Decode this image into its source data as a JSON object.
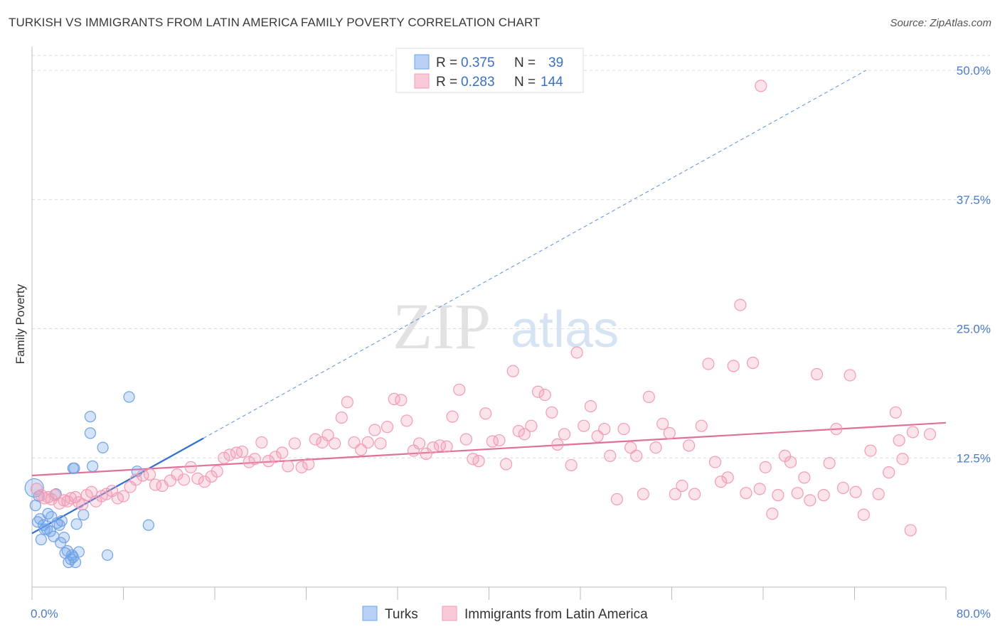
{
  "title": "TURKISH VS IMMIGRANTS FROM LATIN AMERICA FAMILY POVERTY CORRELATION CHART",
  "source": "Source: ZipAtlas.com",
  "watermark": {
    "zip": "ZIP",
    "atlas": "atlas"
  },
  "stats_legend": [
    {
      "r_label": "R = ",
      "r_value": "0.375",
      "n_label": "N = ",
      "n_value": "39",
      "color": "#6fa2e8"
    },
    {
      "r_label": "R = ",
      "r_value": "0.283",
      "n_label": "N = ",
      "n_value": "144",
      "color": "#f29bb5"
    }
  ],
  "chart_data": {
    "type": "scatter",
    "title": "TURKISH VS IMMIGRANTS FROM LATIN AMERICA FAMILY POVERTY CORRELATION CHART",
    "xlabel": "",
    "ylabel": "Family Poverty",
    "xlim": [
      0,
      80
    ],
    "ylim": [
      0,
      52
    ],
    "x_tick_labels": [
      "0.0%",
      "80.0%"
    ],
    "y_ticks": [
      12.5,
      25.0,
      37.5,
      50.0
    ],
    "y_tick_labels": [
      "12.5%",
      "25.0%",
      "37.5%",
      "50.0%"
    ],
    "grid": true,
    "legend_position": "bottom",
    "series": [
      {
        "name": "Turks",
        "color": "#6fa2e8",
        "r": 0.375,
        "n": 39,
        "trend": {
          "x": [
            0,
            15
          ],
          "y": [
            5.2,
            14.4
          ],
          "extended_to": [
            73,
            50.0
          ]
        },
        "points": [
          [
            0.2,
            9.6
          ],
          [
            0.3,
            7.9
          ],
          [
            0.5,
            6.3
          ],
          [
            0.6,
            8.8
          ],
          [
            0.7,
            6.6
          ],
          [
            0.8,
            4.6
          ],
          [
            1.0,
            6.0
          ],
          [
            1.1,
            5.6
          ],
          [
            1.3,
            5.6
          ],
          [
            1.4,
            7.1
          ],
          [
            1.6,
            5.4
          ],
          [
            1.7,
            6.8
          ],
          [
            1.9,
            4.9
          ],
          [
            2.1,
            9.0
          ],
          [
            2.2,
            6.2
          ],
          [
            2.4,
            6.0
          ],
          [
            2.5,
            4.3
          ],
          [
            2.6,
            6.4
          ],
          [
            2.8,
            4.8
          ],
          [
            2.9,
            3.3
          ],
          [
            3.1,
            3.5
          ],
          [
            3.2,
            2.4
          ],
          [
            3.4,
            2.7
          ],
          [
            3.5,
            3.1
          ],
          [
            3.6,
            2.9
          ],
          [
            3.8,
            2.4
          ],
          [
            3.9,
            6.1
          ],
          [
            4.1,
            3.4
          ],
          [
            4.5,
            7.0
          ],
          [
            3.6,
            11.5
          ],
          [
            3.7,
            11.5
          ],
          [
            5.3,
            11.7
          ],
          [
            5.1,
            14.9
          ],
          [
            5.1,
            16.5
          ],
          [
            6.2,
            13.5
          ],
          [
            6.6,
            3.1
          ],
          [
            8.5,
            18.4
          ],
          [
            9.2,
            11.2
          ],
          [
            10.2,
            6.0
          ]
        ]
      },
      {
        "name": "Immigrants from Latin America",
        "color": "#f29bb5",
        "r": 0.283,
        "n": 144,
        "trend": {
          "x": [
            0,
            80
          ],
          "y": [
            10.8,
            15.9
          ]
        },
        "points": [
          [
            0.4,
            9.5
          ],
          [
            0.8,
            8.9
          ],
          [
            1.1,
            8.6
          ],
          [
            1.4,
            8.7
          ],
          [
            1.7,
            8.5
          ],
          [
            2.0,
            8.9
          ],
          [
            2.4,
            8.1
          ],
          [
            2.8,
            8.4
          ],
          [
            3.1,
            8.3
          ],
          [
            3.4,
            8.6
          ],
          [
            3.8,
            8.7
          ],
          [
            4.1,
            8.2
          ],
          [
            4.4,
            8.0
          ],
          [
            4.8,
            8.9
          ],
          [
            5.2,
            9.2
          ],
          [
            5.6,
            8.3
          ],
          [
            6.1,
            8.8
          ],
          [
            6.5,
            9.0
          ],
          [
            7.0,
            9.3
          ],
          [
            7.5,
            8.6
          ],
          [
            8.0,
            8.8
          ],
          [
            8.6,
            9.7
          ],
          [
            9.1,
            10.4
          ],
          [
            9.7,
            10.8
          ],
          [
            10.3,
            10.9
          ],
          [
            10.8,
            9.9
          ],
          [
            11.4,
            9.8
          ],
          [
            12.1,
            10.3
          ],
          [
            12.7,
            10.9
          ],
          [
            13.3,
            10.4
          ],
          [
            13.9,
            11.6
          ],
          [
            14.5,
            10.5
          ],
          [
            15.1,
            10.2
          ],
          [
            15.7,
            10.7
          ],
          [
            16.2,
            11.2
          ],
          [
            16.8,
            12.5
          ],
          [
            17.3,
            12.8
          ],
          [
            17.9,
            13.0
          ],
          [
            18.4,
            13.1
          ],
          [
            19.0,
            12.1
          ],
          [
            19.5,
            12.4
          ],
          [
            20.1,
            14.0
          ],
          [
            20.7,
            12.2
          ],
          [
            21.3,
            12.6
          ],
          [
            21.9,
            13.0
          ],
          [
            22.4,
            11.7
          ],
          [
            23.0,
            13.9
          ],
          [
            23.6,
            11.6
          ],
          [
            24.2,
            11.9
          ],
          [
            24.8,
            14.3
          ],
          [
            25.4,
            14.0
          ],
          [
            25.9,
            14.7
          ],
          [
            26.5,
            13.9
          ],
          [
            27.1,
            16.4
          ],
          [
            27.6,
            17.9
          ],
          [
            28.2,
            14.0
          ],
          [
            28.8,
            13.3
          ],
          [
            29.4,
            14.0
          ],
          [
            30.0,
            15.2
          ],
          [
            30.5,
            13.9
          ],
          [
            31.1,
            15.5
          ],
          [
            31.7,
            18.2
          ],
          [
            32.3,
            18.1
          ],
          [
            32.8,
            16.1
          ],
          [
            33.4,
            13.2
          ],
          [
            33.9,
            13.9
          ],
          [
            34.5,
            12.9
          ],
          [
            35.1,
            13.5
          ],
          [
            35.7,
            13.7
          ],
          [
            36.3,
            13.6
          ],
          [
            36.8,
            16.5
          ],
          [
            37.4,
            19.1
          ],
          [
            38.0,
            14.3
          ],
          [
            38.6,
            12.4
          ],
          [
            39.1,
            12.2
          ],
          [
            39.7,
            16.8
          ],
          [
            40.3,
            14.1
          ],
          [
            40.9,
            14.2
          ],
          [
            41.5,
            11.9
          ],
          [
            42.1,
            20.9
          ],
          [
            42.6,
            15.1
          ],
          [
            43.1,
            14.8
          ],
          [
            43.7,
            15.6
          ],
          [
            44.3,
            18.9
          ],
          [
            44.9,
            18.6
          ],
          [
            45.5,
            16.9
          ],
          [
            46.0,
            13.8
          ],
          [
            46.6,
            14.8
          ],
          [
            47.2,
            11.8
          ],
          [
            47.7,
            22.7
          ],
          [
            48.3,
            15.6
          ],
          [
            48.9,
            17.5
          ],
          [
            49.5,
            14.6
          ],
          [
            50.1,
            15.3
          ],
          [
            50.6,
            12.7
          ],
          [
            51.2,
            8.5
          ],
          [
            51.8,
            15.3
          ],
          [
            52.4,
            13.5
          ],
          [
            52.9,
            12.7
          ],
          [
            53.5,
            9.0
          ],
          [
            54.0,
            18.4
          ],
          [
            54.6,
            13.5
          ],
          [
            55.2,
            15.8
          ],
          [
            55.8,
            14.9
          ],
          [
            56.3,
            9.0
          ],
          [
            56.9,
            9.8
          ],
          [
            57.5,
            13.7
          ],
          [
            58.0,
            9.0
          ],
          [
            58.6,
            15.6
          ],
          [
            59.2,
            21.6
          ],
          [
            59.8,
            12.1
          ],
          [
            60.3,
            10.2
          ],
          [
            60.9,
            10.6
          ],
          [
            61.4,
            21.4
          ],
          [
            62.0,
            27.3
          ],
          [
            62.5,
            9.1
          ],
          [
            63.1,
            21.7
          ],
          [
            63.7,
            9.5
          ],
          [
            64.2,
            11.6
          ],
          [
            64.8,
            7.1
          ],
          [
            65.3,
            8.9
          ],
          [
            65.9,
            12.7
          ],
          [
            66.4,
            12.1
          ],
          [
            67.0,
            9.1
          ],
          [
            67.6,
            10.6
          ],
          [
            68.1,
            8.4
          ],
          [
            68.7,
            20.6
          ],
          [
            69.3,
            8.9
          ],
          [
            69.8,
            12.0
          ],
          [
            70.4,
            15.3
          ],
          [
            71.0,
            9.6
          ],
          [
            71.6,
            20.5
          ],
          [
            72.1,
            9.2
          ],
          [
            72.8,
            7.0
          ],
          [
            73.4,
            13.2
          ],
          [
            74.1,
            9.0
          ],
          [
            75.0,
            11.1
          ],
          [
            75.6,
            16.9
          ],
          [
            76.2,
            12.4
          ],
          [
            76.9,
            5.5
          ],
          [
            63.8,
            48.5
          ],
          [
            75.9,
            14.2
          ],
          [
            77.1,
            15.0
          ],
          [
            78.6,
            14.8
          ]
        ]
      }
    ]
  }
}
